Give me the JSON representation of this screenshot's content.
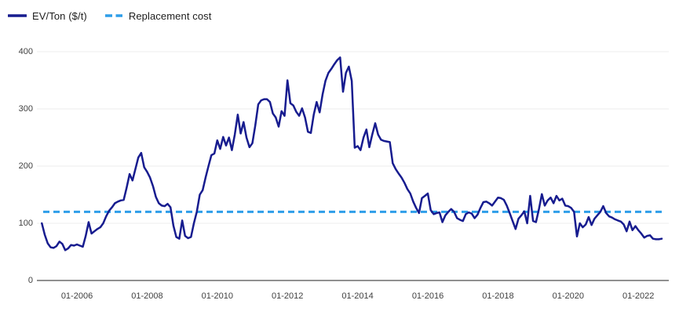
{
  "chart_data": {
    "type": "line",
    "title": "",
    "legend": [
      {
        "label": "EV/Ton ($/t)",
        "color": "#171c8f",
        "style": "solid"
      },
      {
        "label": "Replacement cost",
        "color": "#2e9ee9",
        "style": "dashed"
      }
    ],
    "grid": "horizontal",
    "legend_position": "top-left",
    "xlabel": "",
    "ylabel": "",
    "ylim": [
      0,
      400
    ],
    "y_ticks": [
      0,
      100,
      200,
      300,
      400
    ],
    "x_tick_labels": [
      "01-2006",
      "01-2008",
      "01-2010",
      "01-2012",
      "01-2014",
      "01-2016",
      "01-2018",
      "01-2020",
      "01-2022"
    ],
    "x_tick_years": [
      2006,
      2008,
      2010,
      2012,
      2014,
      2016,
      2018,
      2020,
      2022
    ],
    "series": [
      {
        "name": "EV/Ton ($/t)",
        "frequency": "monthly",
        "start": "2005-01",
        "end": "2022-09",
        "values": [
          100,
          80,
          65,
          58,
          57,
          60,
          68,
          64,
          53,
          56,
          62,
          61,
          63,
          61,
          59,
          78,
          102,
          82,
          86,
          90,
          93,
          100,
          112,
          122,
          128,
          135,
          138,
          140,
          141,
          162,
          186,
          175,
          195,
          215,
          223,
          198,
          190,
          180,
          165,
          146,
          135,
          131,
          130,
          134,
          128,
          96,
          76,
          73,
          105,
          78,
          74,
          76,
          100,
          120,
          150,
          158,
          180,
          200,
          219,
          222,
          245,
          230,
          251,
          236,
          250,
          228,
          255,
          290,
          257,
          277,
          250,
          233,
          240,
          271,
          308,
          315,
          317,
          317,
          312,
          292,
          285,
          269,
          296,
          288,
          350,
          310,
          306,
          295,
          288,
          301,
          285,
          260,
          258,
          290,
          312,
          294,
          325,
          349,
          363,
          370,
          378,
          385,
          390,
          330,
          363,
          374,
          349,
          232,
          235,
          228,
          250,
          264,
          233,
          255,
          275,
          255,
          246,
          244,
          243,
          242,
          205,
          195,
          187,
          180,
          171,
          160,
          152,
          138,
          127,
          118,
          144,
          148,
          152,
          123,
          116,
          118,
          119,
          102,
          114,
          120,
          125,
          120,
          109,
          106,
          104,
          116,
          119,
          117,
          109,
          115,
          127,
          137,
          138,
          135,
          131,
          138,
          145,
          144,
          141,
          131,
          118,
          104,
          90,
          108,
          114,
          121,
          100,
          148,
          104,
          102,
          125,
          151,
          131,
          140,
          145,
          135,
          148,
          140,
          143,
          131,
          130,
          127,
          120,
          77,
          100,
          93,
          98,
          111,
          97,
          108,
          114,
          120,
          130,
          118,
          112,
          110,
          107,
          105,
          103,
          98,
          86,
          103,
          88,
          95,
          88,
          82,
          75,
          78,
          79,
          73,
          72,
          72,
          73
        ]
      },
      {
        "name": "Replacement cost",
        "type": "constant",
        "value": 120
      }
    ]
  },
  "colors": {
    "grid_line": "#ededed",
    "axis_line": "#909090",
    "tick_text": "#3f3f3f"
  }
}
